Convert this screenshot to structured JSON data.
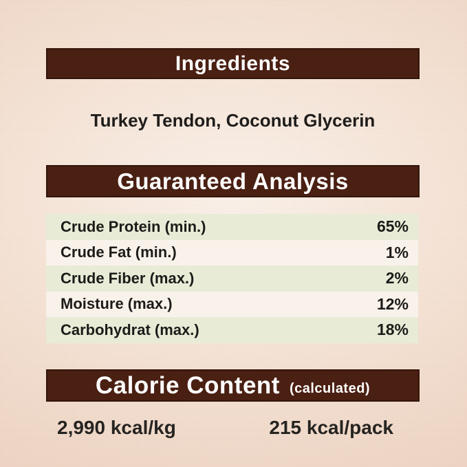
{
  "theme": {
    "bar_color": "#4a2013",
    "bar_border": "#33150a",
    "bar_text": "#fdfdfd",
    "row_green": "#e8ecd7",
    "row_cream": "#f9f2ea",
    "text_dark": "#1f1d1b",
    "background_center": "#faf2ea",
    "background_edge": "#e9cdba"
  },
  "ingredients": {
    "title": "Ingredients",
    "list": "Turkey Tendon, Coconut Glycerin"
  },
  "guaranteed_analysis": {
    "title": "Guaranteed Analysis",
    "rows": [
      {
        "label": "Crude Protein (min.)",
        "value": "65%"
      },
      {
        "label": "Crude Fat (min.)",
        "value": "1%"
      },
      {
        "label": "Crude Fiber (max.)",
        "value": "2%"
      },
      {
        "label": "Moisture (max.)",
        "value": "12%"
      },
      {
        "label": "Carbohydrat (max.)",
        "value": "18%"
      }
    ]
  },
  "calorie_content": {
    "title": "Calorie Content",
    "qualifier": "(calculated)",
    "kcal_per_kg": "2,990 kcal/kg",
    "kcal_per_pack": "215 kcal/pack"
  }
}
